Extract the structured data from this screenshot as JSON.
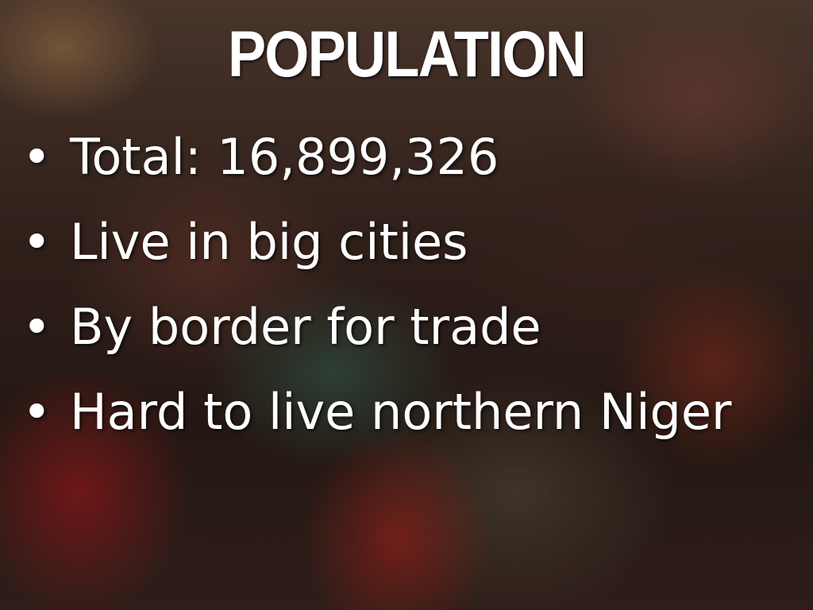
{
  "slide": {
    "title": "POPULATION",
    "bullet_glyph": "•",
    "bullets": [
      "Total: 16,899,326",
      "Live in big cities",
      "By border for trade",
      "Hard to live northern Niger"
    ]
  },
  "background": {
    "image": "crowd-of-people-photo",
    "dominant_color": "#3b2720"
  }
}
